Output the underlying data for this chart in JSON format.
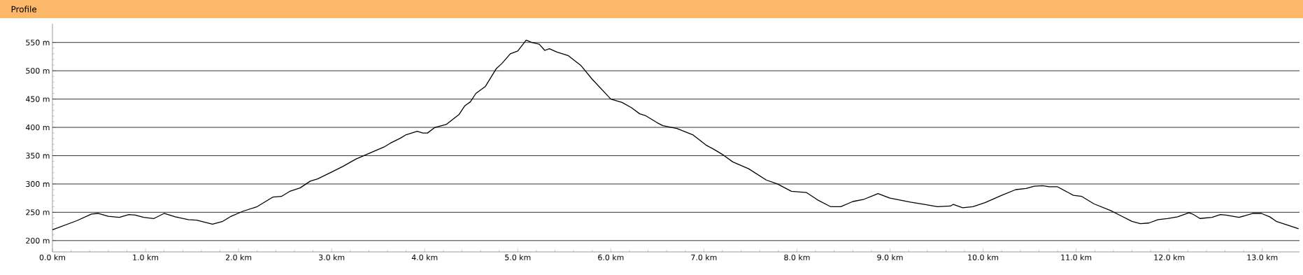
{
  "chart_data": {
    "type": "line",
    "title": "Profile",
    "color": "#000000",
    "grid": "y",
    "xlim": [
      0,
      13.4
    ],
    "ylim": [
      180,
      583
    ],
    "xticks": [
      {
        "value": 0,
        "label": "0.0 km"
      },
      {
        "value": 1,
        "label": "1.0 km"
      },
      {
        "value": 2,
        "label": "2.0 km"
      },
      {
        "value": 3,
        "label": "3.0 km"
      },
      {
        "value": 4,
        "label": "4.0 km"
      },
      {
        "value": 5,
        "label": "5.0 km"
      },
      {
        "value": 6,
        "label": "6.0 km"
      },
      {
        "value": 7,
        "label": "7.0 km"
      },
      {
        "value": 8,
        "label": "8.0 km"
      },
      {
        "value": 9,
        "label": "9.0 km"
      },
      {
        "value": 10,
        "label": "10.0 km"
      },
      {
        "value": 11,
        "label": "11.0 km"
      },
      {
        "value": 12,
        "label": "12.0 km"
      },
      {
        "value": 13,
        "label": "13.0 km"
      }
    ],
    "yticks": [
      {
        "value": 200,
        "label": "200 m"
      },
      {
        "value": 250,
        "label": "250 m"
      },
      {
        "value": 300,
        "label": "300 m"
      },
      {
        "value": 350,
        "label": "350 m"
      },
      {
        "value": 400,
        "label": "400 m"
      },
      {
        "value": 450,
        "label": "450 m"
      },
      {
        "value": 500,
        "label": "500 m"
      },
      {
        "value": 550,
        "label": "550 m"
      }
    ],
    "x": [
      0,
      0.26,
      0.42,
      0.49,
      0.6,
      0.72,
      0.82,
      0.89,
      0.98,
      1.09,
      1.2,
      1.32,
      1.46,
      1.55,
      1.72,
      1.83,
      1.92,
      2.05,
      2.2,
      2.37,
      2.46,
      2.55,
      2.66,
      2.77,
      2.85,
      3.0,
      3.12,
      3.26,
      3.43,
      3.57,
      3.63,
      3.74,
      3.8,
      3.92,
      3.98,
      4.03,
      4.11,
      4.23,
      4.37,
      4.43,
      4.49,
      4.55,
      4.65,
      4.77,
      4.83,
      4.92,
      5.0,
      5.09,
      5.15,
      5.23,
      5.29,
      5.34,
      5.42,
      5.54,
      5.68,
      5.8,
      6.0,
      6.12,
      6.22,
      6.31,
      6.37,
      6.5,
      6.56,
      6.71,
      6.88,
      7.02,
      7.11,
      7.21,
      7.31,
      7.48,
      7.67,
      7.79,
      7.94,
      8.1,
      8.22,
      8.36,
      8.47,
      8.6,
      8.72,
      8.84,
      8.87,
      9.0,
      9.22,
      9.37,
      9.51,
      9.65,
      9.68,
      9.78,
      9.89,
      10.02,
      10.2,
      10.35,
      10.46,
      10.55,
      10.64,
      10.71,
      10.8,
      10.97,
      11.06,
      11.19,
      11.37,
      11.49,
      11.6,
      11.69,
      11.78,
      11.88,
      11.98,
      12.09,
      12.21,
      12.25,
      12.33,
      12.46,
      12.55,
      12.61,
      12.75,
      12.9,
      12.99,
      13.08,
      13.15,
      13.39
    ],
    "values": [
      219,
      235,
      247,
      248,
      243,
      241,
      246,
      245,
      241,
      239,
      248,
      242,
      237,
      236,
      229,
      234,
      243,
      252,
      260,
      277,
      278,
      287,
      293,
      305,
      309,
      321,
      331,
      344,
      356,
      366,
      372,
      381,
      387,
      393,
      390,
      390,
      400,
      405,
      423,
      438,
      445,
      460,
      472,
      504,
      513,
      530,
      535,
      554,
      550,
      547,
      536,
      539,
      533,
      527,
      509,
      485,
      450,
      444,
      435,
      424,
      421,
      408,
      403,
      398,
      387,
      369,
      361,
      351,
      339,
      327,
      307,
      300,
      287,
      285,
      272,
      260,
      260,
      269,
      273,
      281,
      283,
      275,
      268,
      264,
      260,
      261,
      264,
      258,
      260,
      267,
      280,
      290,
      292,
      296,
      297,
      295,
      295,
      280,
      278,
      265,
      253,
      243,
      234,
      230,
      231,
      237,
      239,
      242,
      249,
      247,
      239,
      241,
      246,
      245,
      241,
      248,
      248,
      242,
      234,
      221
    ]
  }
}
